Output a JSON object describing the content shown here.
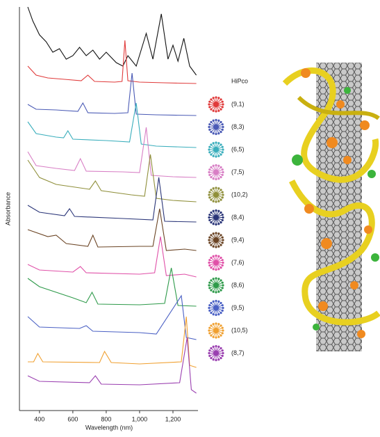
{
  "chart_data": {
    "type": "line",
    "x_label": "Wavelength (nm)",
    "y_label": "Absorbance",
    "xlim": [
      280,
      1350
    ],
    "ylim": [
      0,
      58
    ],
    "xticks": [
      400,
      600,
      800,
      {
        "value": 1000,
        "label": "1,000"
      },
      {
        "value": 1200,
        "label": "1,200"
      }
    ],
    "series": [
      {
        "name": "HiPco",
        "color": "#111111",
        "x": [
          330,
          360,
          400,
          440,
          480,
          520,
          560,
          600,
          640,
          680,
          720,
          760,
          800,
          860,
          900,
          930,
          980,
          1040,
          1080,
          1130,
          1170,
          1200,
          1230,
          1265,
          1300,
          1340
        ],
        "values": [
          58,
          56,
          54,
          53,
          51.5,
          52,
          50.5,
          51,
          52.2,
          51,
          51.8,
          50.5,
          51.5,
          50,
          49.5,
          51,
          49.5,
          54.2,
          50.5,
          57,
          50.5,
          52.5,
          50.2,
          53.5,
          49.5,
          48.2
        ]
      },
      {
        "name": "(9,1)",
        "color": "#e03a3a",
        "x": [
          330,
          380,
          450,
          550,
          650,
          690,
          730,
          850,
          895,
          912,
          930,
          1000,
          1150,
          1340
        ],
        "values": [
          49.5,
          48.2,
          47.8,
          47.6,
          47.4,
          48.2,
          47.3,
          47.2,
          47.3,
          53.2,
          47.4,
          47.2,
          47.1,
          47.0
        ]
      },
      {
        "name": "(8,3)",
        "color": "#4a5ab5",
        "x": [
          330,
          380,
          500,
          630,
          660,
          690,
          850,
          930,
          955,
          980,
          1100,
          1340
        ],
        "values": [
          44.0,
          43.3,
          43.2,
          43.0,
          44.2,
          42.8,
          42.7,
          42.8,
          48.5,
          42.6,
          42.5,
          42.4
        ]
      },
      {
        "name": "(6,5)",
        "color": "#3aaebc",
        "x": [
          330,
          380,
          500,
          545,
          570,
          600,
          800,
          940,
          980,
          1010,
          1100,
          1340
        ],
        "values": [
          41.5,
          39.8,
          39.3,
          39.2,
          40.2,
          39.0,
          38.8,
          38.6,
          44.2,
          38.3,
          38.0,
          37.8
        ]
      },
      {
        "name": "(7,5)",
        "color": "#d87fc5",
        "x": [
          330,
          380,
          500,
          610,
          645,
          680,
          900,
          1000,
          1040,
          1070,
          1200,
          1340
        ],
        "values": [
          37.2,
          35.2,
          34.8,
          34.5,
          36.2,
          34.4,
          34.3,
          34.2,
          40.7,
          33.8,
          33.6,
          33.5
        ]
      },
      {
        "name": "(10,2)",
        "color": "#8f8f3a",
        "x": [
          330,
          400,
          500,
          700,
          735,
          770,
          950,
          1030,
          1065,
          1100,
          1200,
          1340
        ],
        "values": [
          36.0,
          33.5,
          32.5,
          31.8,
          33.0,
          31.6,
          31.0,
          30.8,
          36.8,
          30.5,
          30.2,
          30.0
        ]
      },
      {
        "name": "(8,4)",
        "color": "#2a3578",
        "x": [
          330,
          400,
          550,
          580,
          610,
          900,
          1080,
          1115,
          1150,
          1340
        ],
        "values": [
          29.5,
          28.5,
          28.0,
          29.0,
          27.9,
          27.6,
          27.4,
          33.5,
          27.2,
          27.1
        ]
      },
      {
        "name": "(9,4)",
        "color": "#6b4424",
        "x": [
          330,
          450,
          500,
          560,
          690,
          720,
          750,
          1000,
          1080,
          1120,
          1160,
          1270,
          1340
        ],
        "values": [
          26.0,
          25.0,
          25.2,
          24.0,
          23.6,
          25.2,
          23.5,
          23.6,
          23.6,
          29.0,
          23.0,
          23.2,
          23.0
        ]
      },
      {
        "name": "(7,6)",
        "color": "#e050a8",
        "x": [
          330,
          400,
          600,
          645,
          680,
          1000,
          1090,
          1125,
          1160,
          1270,
          1340
        ],
        "values": [
          21.0,
          20.2,
          19.9,
          20.7,
          19.8,
          19.6,
          19.8,
          25.0,
          19.4,
          19.6,
          19.2
        ]
      },
      {
        "name": "(8,6)",
        "color": "#2e9a4a",
        "x": [
          330,
          400,
          600,
          680,
          715,
          750,
          1000,
          1150,
          1190,
          1230,
          1340
        ],
        "values": [
          19.0,
          17.8,
          16.2,
          15.5,
          17.0,
          15.3,
          15.2,
          15.4,
          20.5,
          15.1,
          15.0
        ]
      },
      {
        "name": "(9,5)",
        "color": "#4a60c4",
        "x": [
          330,
          400,
          640,
          680,
          720,
          1000,
          1100,
          1250,
          1280,
          1340
        ],
        "values": [
          13.5,
          12.0,
          11.8,
          12.2,
          11.4,
          11.2,
          11.0,
          16.5,
          10.5,
          10.2
        ]
      },
      {
        "name": "(10,5)",
        "color": "#f0a030",
        "x": [
          330,
          365,
          390,
          420,
          760,
          790,
          830,
          1000,
          1250,
          1280,
          1300,
          1340
        ],
        "values": [
          7.0,
          7.0,
          8.2,
          7.0,
          6.9,
          8.5,
          6.9,
          6.7,
          7.0,
          13.5,
          6.5,
          6.2
        ]
      },
      {
        "name": "(8,7)",
        "color": "#9a3fb0",
        "x": [
          330,
          400,
          700,
          735,
          770,
          1000,
          1240,
          1285,
          1310,
          1340
        ],
        "values": [
          5.0,
          4.2,
          4.0,
          5.0,
          3.8,
          3.7,
          4.0,
          10.5,
          3.0,
          2.5
        ]
      }
    ]
  }
}
